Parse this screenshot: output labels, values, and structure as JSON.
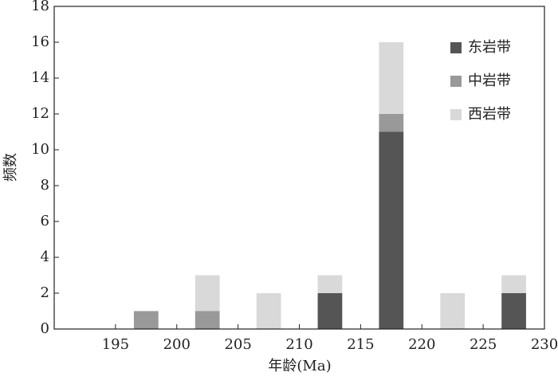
{
  "chart_data": {
    "type": "stacked_bar",
    "xlabel": "年龄(Ma)",
    "ylabel": "频数",
    "x": [
      197.5,
      202.5,
      207.5,
      212.5,
      217.5,
      222.5,
      227.5
    ],
    "series": [
      {
        "name": "东岩带",
        "color": "#555555",
        "values": [
          0,
          0,
          0,
          2,
          11,
          0,
          2
        ]
      },
      {
        "name": "中岩带",
        "color": "#999999",
        "values": [
          1,
          1,
          0,
          0,
          1,
          0,
          0
        ]
      },
      {
        "name": "西岩带",
        "color": "#d9d9d9",
        "values": [
          0,
          2,
          2,
          1,
          4,
          2,
          1
        ]
      }
    ],
    "xlim": [
      190,
      230
    ],
    "xticks": [
      195,
      200,
      205,
      210,
      215,
      220,
      225,
      230
    ],
    "ylim": [
      0,
      18
    ],
    "yticks": [
      0,
      2,
      4,
      6,
      8,
      10,
      12,
      14,
      16,
      18
    ],
    "grid": false,
    "legend": "upper right"
  }
}
